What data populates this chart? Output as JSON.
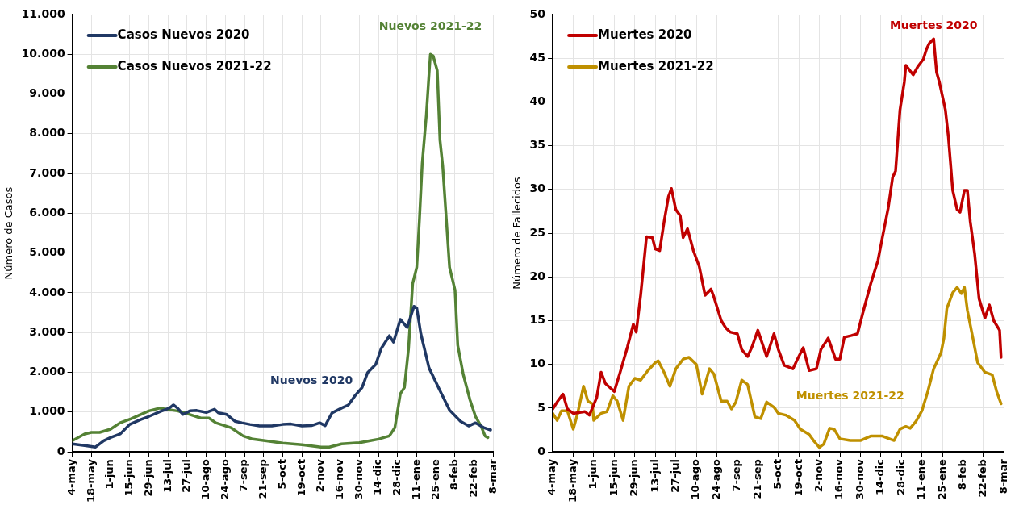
{
  "chart_data": [
    {
      "type": "line",
      "ylabel": "Número de Casos",
      "xlim": [
        "2020-05-04",
        "2021-03-08"
      ],
      "xticks": [
        {
          "value": "2020-05-04",
          "label": "4-may"
        },
        {
          "value": "2020-05-18",
          "label": "18-may"
        },
        {
          "value": "2020-06-01",
          "label": "1-jun"
        },
        {
          "value": "2020-06-15",
          "label": "15-jun"
        },
        {
          "value": "2020-06-29",
          "label": "29-jun"
        },
        {
          "value": "2020-07-13",
          "label": "13-jul"
        },
        {
          "value": "2020-07-27",
          "label": "27-jul"
        },
        {
          "value": "2020-08-10",
          "label": "10-ago"
        },
        {
          "value": "2020-08-24",
          "label": "24-ago"
        },
        {
          "value": "2020-09-07",
          "label": "7-sep"
        },
        {
          "value": "2020-09-21",
          "label": "21-sep"
        },
        {
          "value": "2020-10-05",
          "label": "5-oct"
        },
        {
          "value": "2020-10-19",
          "label": "19-oct"
        },
        {
          "value": "2020-11-02",
          "label": "2-nov"
        },
        {
          "value": "2020-11-16",
          "label": "16-nov"
        },
        {
          "value": "2020-11-30",
          "label": "30-nov"
        },
        {
          "value": "2020-12-14",
          "label": "14-dic"
        },
        {
          "value": "2020-12-28",
          "label": "28-dic"
        },
        {
          "value": "2021-01-11",
          "label": "11-ene"
        },
        {
          "value": "2021-01-25",
          "label": "25-ene"
        },
        {
          "value": "2021-02-08",
          "label": "8-feb"
        },
        {
          "value": "2021-02-22",
          "label": "22-feb"
        },
        {
          "value": "2021-03-08",
          "label": "8-mar"
        }
      ],
      "ylim": [
        0,
        11000
      ],
      "yticks": [
        0,
        {
          "value": 1000,
          "label": "1.000"
        },
        {
          "value": 2000,
          "label": "2.000"
        },
        {
          "value": 3000,
          "label": "3.000"
        },
        {
          "value": 4000,
          "label": "4.000"
        },
        {
          "value": 5000,
          "label": "5.000"
        },
        {
          "value": 6000,
          "label": "6.000"
        },
        {
          "value": 7000,
          "label": "7.000"
        },
        {
          "value": 8000,
          "label": "8.000"
        },
        {
          "value": 9000,
          "label": "9.000"
        },
        {
          "value": 10000,
          "label": "10.000"
        },
        {
          "value": 11000,
          "label": "11.000"
        }
      ],
      "grid": true,
      "legend": "top left",
      "marker": "none",
      "line_style": "solid",
      "series": [
        {
          "name": "Casos Nuevos 2020",
          "color": "#203864",
          "x": [
            "2020-05-04",
            "2020-05-13",
            "2020-05-21",
            "2020-05-27",
            "2020-06-01",
            "2020-06-08",
            "2020-06-15",
            "2020-06-23",
            "2020-06-29",
            "2020-07-07",
            "2020-07-14",
            "2020-07-17",
            "2020-07-20",
            "2020-07-24",
            "2020-07-29",
            "2020-08-03",
            "2020-08-10",
            "2020-08-16",
            "2020-08-19",
            "2020-08-25",
            "2020-08-31",
            "2020-09-05",
            "2020-09-11",
            "2020-09-18",
            "2020-09-27",
            "2020-10-05",
            "2020-10-11",
            "2020-10-19",
            "2020-10-26",
            "2020-11-01",
            "2020-11-05",
            "2020-11-10",
            "2020-11-17",
            "2020-11-22",
            "2020-11-27",
            "2020-12-02",
            "2020-12-06",
            "2020-12-12",
            "2020-12-16",
            "2020-12-22",
            "2020-12-25",
            "2020-12-30",
            "2021-01-04",
            "2021-01-09",
            "2021-01-11",
            "2021-01-14",
            "2021-01-20",
            "2021-01-28",
            "2021-02-04",
            "2021-02-12",
            "2021-02-18",
            "2021-02-23",
            "2021-03-01",
            "2021-03-06"
          ],
          "values": [
            200,
            160,
            120,
            280,
            360,
            450,
            690,
            810,
            890,
            1010,
            1100,
            1180,
            1100,
            940,
            1030,
            1040,
            990,
            1070,
            980,
            940,
            770,
            730,
            690,
            650,
            650,
            690,
            700,
            650,
            660,
            730,
            660,
            980,
            1100,
            1180,
            1420,
            1620,
            1990,
            2200,
            2600,
            2920,
            2760,
            3330,
            3130,
            3660,
            3620,
            2970,
            2110,
            1540,
            1050,
            770,
            650,
            730,
            610,
            550
          ]
        },
        {
          "name": "Casos Nuevos 2021-22",
          "color": "#548235",
          "x": [
            "2020-05-04",
            "2020-05-13",
            "2020-05-18",
            "2020-05-24",
            "2020-06-01",
            "2020-06-08",
            "2020-06-16",
            "2020-06-29",
            "2020-07-07",
            "2020-07-14",
            "2020-07-20",
            "2020-07-29",
            "2020-08-06",
            "2020-08-12",
            "2020-08-17",
            "2020-08-28",
            "2020-09-06",
            "2020-09-13",
            "2020-09-22",
            "2020-10-05",
            "2020-10-19",
            "2020-11-02",
            "2020-11-08",
            "2020-11-17",
            "2020-11-30",
            "2020-12-08",
            "2020-12-14",
            "2020-12-22",
            "2020-12-26",
            "2020-12-30",
            "2021-01-02",
            "2021-01-05",
            "2021-01-08",
            "2021-01-11",
            "2021-01-13",
            "2021-01-15",
            "2021-01-18",
            "2021-01-20",
            "2021-01-21",
            "2021-01-23",
            "2021-01-26",
            "2021-01-28",
            "2021-01-30",
            "2021-02-04",
            "2021-02-08",
            "2021-02-10",
            "2021-02-14",
            "2021-02-19",
            "2021-02-23",
            "2021-02-27",
            "2021-03-02",
            "2021-03-04"
          ],
          "values": [
            280,
            450,
            490,
            490,
            570,
            730,
            830,
            1030,
            1100,
            1060,
            1030,
            940,
            850,
            850,
            730,
            610,
            400,
            320,
            280,
            220,
            180,
            120,
            120,
            200,
            230,
            280,
            320,
            400,
            610,
            1460,
            1620,
            2600,
            4230,
            4640,
            5860,
            7250,
            8460,
            9510,
            10000,
            9960,
            9590,
            7840,
            7190,
            4640,
            4070,
            2680,
            1950,
            1300,
            890,
            650,
            400,
            360
          ]
        }
      ],
      "annotations": [
        "Nuevos 2020",
        "Nuevos 2021-22"
      ]
    },
    {
      "type": "line",
      "ylabel": "Número de Fallecidos",
      "xlim": [
        "2020-05-04",
        "2021-03-08"
      ],
      "xticks": [
        {
          "value": "2020-05-04",
          "label": "4-may"
        },
        {
          "value": "2020-05-18",
          "label": "18-may"
        },
        {
          "value": "2020-06-01",
          "label": "1-jun"
        },
        {
          "value": "2020-06-15",
          "label": "15-jun"
        },
        {
          "value": "2020-06-29",
          "label": "29-jun"
        },
        {
          "value": "2020-07-13",
          "label": "13-jul"
        },
        {
          "value": "2020-07-27",
          "label": "27-jul"
        },
        {
          "value": "2020-08-10",
          "label": "10-ago"
        },
        {
          "value": "2020-08-24",
          "label": "24-ago"
        },
        {
          "value": "2020-09-07",
          "label": "7-sep"
        },
        {
          "value": "2020-09-21",
          "label": "21-sep"
        },
        {
          "value": "2020-10-05",
          "label": "5-oct"
        },
        {
          "value": "2020-10-19",
          "label": "19-oct"
        },
        {
          "value": "2020-11-02",
          "label": "2-nov"
        },
        {
          "value": "2020-11-16",
          "label": "16-nov"
        },
        {
          "value": "2020-11-30",
          "label": "30-nov"
        },
        {
          "value": "2020-12-14",
          "label": "14-dic"
        },
        {
          "value": "2020-12-28",
          "label": "28-dic"
        },
        {
          "value": "2021-01-11",
          "label": "11-ene"
        },
        {
          "value": "2021-01-25",
          "label": "25-ene"
        },
        {
          "value": "2021-02-08",
          "label": "8-feb"
        },
        {
          "value": "2021-02-22",
          "label": "22-feb"
        },
        {
          "value": "2021-03-08",
          "label": "8-mar"
        }
      ],
      "ylim": [
        0,
        50
      ],
      "yticks": [
        0,
        5,
        10,
        15,
        20,
        25,
        30,
        35,
        40,
        45,
        50
      ],
      "grid": true,
      "legend": "top left",
      "marker": "none",
      "line_style": "solid",
      "series": [
        {
          "name": "Muertes 2020",
          "color": "#c00000",
          "x": [
            "2020-05-04",
            "2020-05-07",
            "2020-05-11",
            "2020-05-14",
            "2020-05-18",
            "2020-05-26",
            "2020-05-29",
            "2020-06-03",
            "2020-06-06",
            "2020-06-09",
            "2020-06-15",
            "2020-06-19",
            "2020-06-24",
            "2020-06-28",
            "2020-06-30",
            "2020-07-03",
            "2020-07-07",
            "2020-07-11",
            "2020-07-13",
            "2020-07-16",
            "2020-07-19",
            "2020-07-22",
            "2020-07-24",
            "2020-07-27",
            "2020-07-30",
            "2020-08-01",
            "2020-08-04",
            "2020-08-08",
            "2020-08-12",
            "2020-08-16",
            "2020-08-20",
            "2020-08-22",
            "2020-08-27",
            "2020-08-30",
            "2020-09-02",
            "2020-09-07",
            "2020-09-10",
            "2020-09-14",
            "2020-09-17",
            "2020-09-21",
            "2020-09-24",
            "2020-09-27",
            "2020-10-02",
            "2020-10-05",
            "2020-10-09",
            "2020-10-15",
            "2020-10-18",
            "2020-10-22",
            "2020-10-26",
            "2020-10-31",
            "2020-11-03",
            "2020-11-08",
            "2020-11-13",
            "2020-11-16",
            "2020-11-19",
            "2020-11-24",
            "2020-11-28",
            "2020-12-02",
            "2020-12-07",
            "2020-12-12",
            "2020-12-15",
            "2020-12-19",
            "2020-12-22",
            "2020-12-24",
            "2020-12-27",
            "2020-12-30",
            "2020-12-31",
            "2021-01-05",
            "2021-01-08",
            "2021-01-12",
            "2021-01-14",
            "2021-01-16",
            "2021-01-19",
            "2021-01-21",
            "2021-01-23",
            "2021-01-27",
            "2021-01-29",
            "2021-02-01",
            "2021-02-04",
            "2021-02-06",
            "2021-02-09",
            "2021-02-11",
            "2021-02-13",
            "2021-02-16",
            "2021-02-19",
            "2021-02-23",
            "2021-02-26",
            "2021-03-01",
            "2021-03-05",
            "2021-03-06"
          ],
          "values": [
            4.9,
            5.7,
            6.6,
            4.9,
            4.4,
            4.6,
            4.2,
            6.2,
            9.1,
            7.8,
            6.9,
            9.1,
            12.0,
            14.6,
            13.7,
            17.9,
            24.6,
            24.5,
            23.2,
            23.0,
            26.3,
            29.2,
            30.1,
            27.7,
            27.0,
            24.5,
            25.5,
            23.0,
            21.2,
            17.9,
            18.6,
            17.7,
            15.0,
            14.2,
            13.7,
            13.5,
            11.7,
            10.9,
            12.0,
            13.9,
            12.4,
            10.9,
            13.5,
            11.7,
            9.9,
            9.5,
            10.6,
            11.9,
            9.3,
            9.5,
            11.7,
            13.0,
            10.6,
            10.6,
            13.1,
            13.3,
            13.5,
            16.1,
            19.2,
            21.9,
            24.5,
            27.9,
            31.4,
            32.1,
            39.1,
            42.3,
            44.2,
            43.1,
            44.0,
            44.9,
            46.0,
            46.7,
            47.2,
            43.4,
            42.2,
            39.1,
            36.1,
            29.9,
            27.7,
            27.4,
            29.9,
            29.9,
            26.3,
            22.6,
            17.5,
            15.3,
            16.8,
            15.0,
            13.9,
            10.8
          ]
        },
        {
          "name": "Muertes 2021-22",
          "color": "#bf9000",
          "x": [
            "2020-05-04",
            "2020-05-07",
            "2020-05-10",
            "2020-05-14",
            "2020-05-18",
            "2020-05-21",
            "2020-05-25",
            "2020-05-28",
            "2020-05-31",
            "2020-06-01",
            "2020-06-06",
            "2020-06-10",
            "2020-06-14",
            "2020-06-17",
            "2020-06-21",
            "2020-06-25",
            "2020-06-29",
            "2020-07-03",
            "2020-07-08",
            "2020-07-13",
            "2020-07-15",
            "2020-07-19",
            "2020-07-23",
            "2020-07-27",
            "2020-08-01",
            "2020-08-05",
            "2020-08-10",
            "2020-08-14",
            "2020-08-19",
            "2020-08-22",
            "2020-08-27",
            "2020-08-31",
            "2020-09-03",
            "2020-09-06",
            "2020-09-10",
            "2020-09-14",
            "2020-09-19",
            "2020-09-23",
            "2020-09-27",
            "2020-10-02",
            "2020-10-05",
            "2020-10-10",
            "2020-10-16",
            "2020-10-20",
            "2020-10-26",
            "2020-10-29",
            "2020-11-02",
            "2020-11-05",
            "2020-11-09",
            "2020-11-12",
            "2020-11-16",
            "2020-11-23",
            "2020-11-30",
            "2020-12-07",
            "2020-12-15",
            "2020-12-23",
            "2020-12-27",
            "2020-12-31",
            "2021-01-03",
            "2021-01-07",
            "2021-01-11",
            "2021-01-15",
            "2021-01-19",
            "2021-01-24",
            "2021-01-26",
            "2021-01-28",
            "2021-02-01",
            "2021-02-04",
            "2021-02-07",
            "2021-02-09",
            "2021-02-11",
            "2021-02-15",
            "2021-02-18",
            "2021-02-23",
            "2021-02-28",
            "2021-03-03",
            "2021-03-06"
          ],
          "values": [
            4.4,
            3.6,
            4.7,
            4.7,
            2.6,
            4.4,
            7.5,
            5.8,
            5.5,
            3.6,
            4.4,
            4.6,
            6.4,
            5.8,
            3.6,
            7.5,
            8.4,
            8.2,
            9.3,
            10.2,
            10.4,
            9.1,
            7.5,
            9.5,
            10.6,
            10.8,
            10.0,
            6.6,
            9.5,
            8.9,
            5.8,
            5.8,
            4.9,
            5.7,
            8.2,
            7.7,
            4.0,
            3.8,
            5.7,
            5.1,
            4.4,
            4.2,
            3.6,
            2.6,
            2.0,
            1.3,
            0.5,
            0.9,
            2.7,
            2.6,
            1.5,
            1.3,
            1.3,
            1.8,
            1.8,
            1.3,
            2.6,
            2.9,
            2.7,
            3.5,
            4.7,
            6.9,
            9.5,
            11.3,
            13.0,
            16.4,
            18.2,
            18.8,
            18.1,
            18.8,
            16.2,
            12.8,
            10.2,
            9.1,
            8.8,
            6.9,
            5.5
          ]
        }
      ],
      "annotations": [
        "Muertes 2020",
        "Muertes 2021-22"
      ]
    }
  ]
}
